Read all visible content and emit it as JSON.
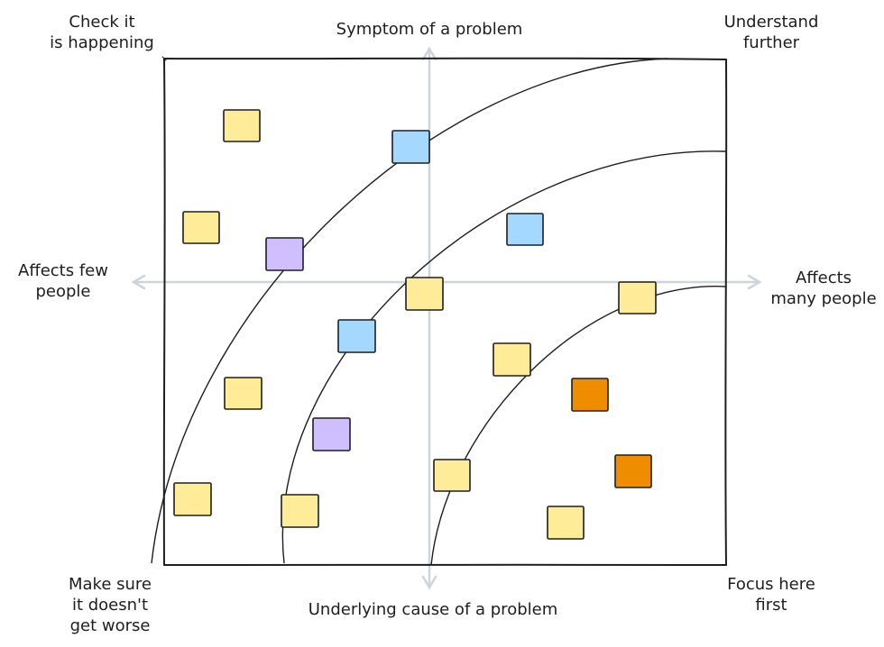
{
  "labels": {
    "top_left": "Check it\nis happening",
    "top_center": "Symptom of a problem",
    "top_right": "Understand\nfurther",
    "left_center": "Affects few\npeople",
    "right_center": "Affects\nmany people",
    "bottom_left": "Make sure\nit doesn't\nget worse",
    "bottom_center": "Underlying cause of a problem",
    "bottom_right": "Focus here\nfirst"
  },
  "colors": {
    "yellow": "#ffec99",
    "blue": "#a5d8ff",
    "purple": "#d0bfff",
    "orange": "#f08c00",
    "stroke": "#1e1e1e",
    "axis": "#ced4da"
  },
  "notes": [
    {
      "color": "yellow"
    },
    {
      "color": "yellow"
    },
    {
      "color": "blue"
    },
    {
      "color": "purple"
    },
    {
      "color": "blue"
    },
    {
      "color": "yellow"
    },
    {
      "color": "yellow"
    },
    {
      "color": "blue"
    },
    {
      "color": "yellow"
    },
    {
      "color": "yellow"
    },
    {
      "color": "orange"
    },
    {
      "color": "purple"
    },
    {
      "color": "yellow"
    },
    {
      "color": "orange"
    },
    {
      "color": "yellow"
    },
    {
      "color": "yellow"
    },
    {
      "color": "yellow"
    }
  ]
}
